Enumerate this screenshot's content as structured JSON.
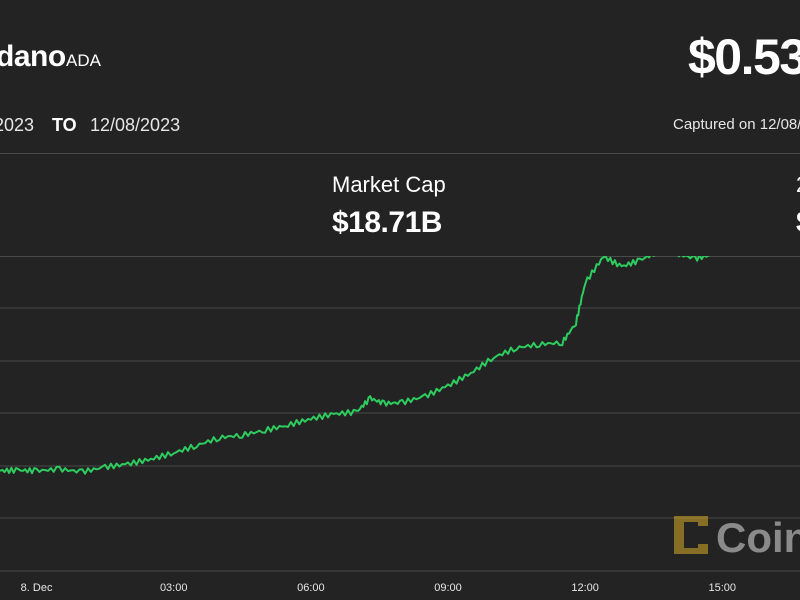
{
  "header": {
    "asset_name": "dano",
    "ticker": "ADA",
    "price": "$0.53",
    "date_from": "2023",
    "date_to_word": "TO",
    "date_to": "12/08/2023",
    "captured": "Captured on 12/08/"
  },
  "stats": {
    "market_cap_label": "Market Cap",
    "market_cap_value": "$18.71B",
    "right_label": "2",
    "right_value": "$"
  },
  "watermark": {
    "brand": "Coin"
  },
  "colors": {
    "background": "#232323",
    "line": "#2ecc5f",
    "grid": "#4a4a4a",
    "logo": "#c9a227"
  },
  "chart_data": {
    "type": "line",
    "title": "",
    "xlabel": "",
    "ylabel": "",
    "x_tick_labels": [
      "8. Dec",
      "03:00",
      "06:00",
      "09:00",
      "12:00",
      "15:00"
    ],
    "x_range_hours": [
      -0.8,
      16.7
    ],
    "grid": true,
    "legend": "none",
    "series": [
      {
        "x_hours": [
          -0.8,
          -0.4,
          0,
          0.5,
          1,
          1.5,
          2,
          2.5,
          3,
          3.5,
          4,
          4.5,
          5,
          5.5,
          6,
          6.5,
          7,
          7.3,
          7.6,
          8,
          8.5,
          9,
          9.5,
          10,
          10.5,
          11,
          11.5,
          11.8,
          12,
          12.4,
          12.8,
          13.2,
          13.6,
          14,
          14.4,
          14.8,
          15.1,
          15.5,
          16,
          16.5,
          16.7
        ],
        "y": [
          0.9,
          0.91,
          0.9,
          0.93,
          0.88,
          0.97,
          1.03,
          1.12,
          1.24,
          1.38,
          1.53,
          1.58,
          1.67,
          1.77,
          1.89,
          1.98,
          2.02,
          2.28,
          2.18,
          2.2,
          2.32,
          2.52,
          2.76,
          3.06,
          3.24,
          3.31,
          3.34,
          3.72,
          4.48,
          4.98,
          4.79,
          4.91,
          5.08,
          5.04,
          4.94,
          5.02,
          5.34,
          5.18,
          5.25,
          5.42,
          5.38
        ]
      }
    ]
  }
}
